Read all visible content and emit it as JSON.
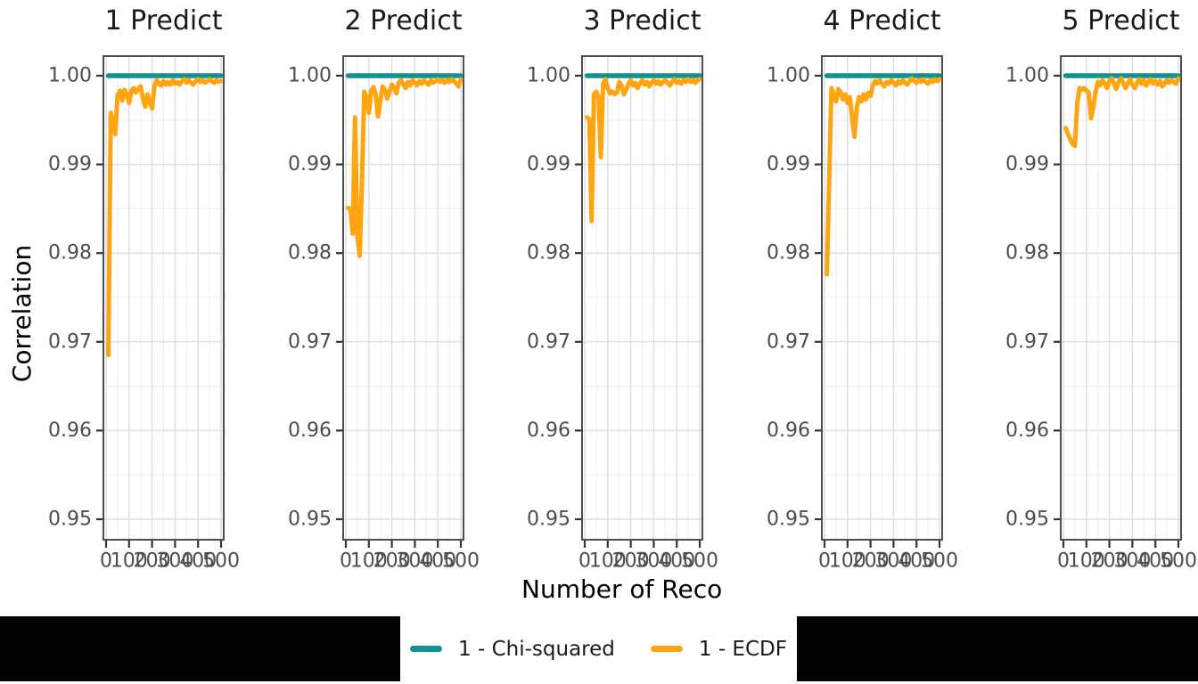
{
  "colors": {
    "chi_squared": "#12918F",
    "ecdf": "#FFA512",
    "grid_major": "#DEDEDE",
    "grid_minor": "#F0F0F0",
    "panel_border": "#3A3A3A",
    "tick_mark": "#333333",
    "tick_label": "#4D4D4D",
    "title_text": "#1A1A1A",
    "black_box": "#000000"
  },
  "legend": {
    "items": [
      {
        "label": "1 - Chi-squared",
        "color_key": "chi_squared",
        "swatch": "line"
      },
      {
        "label": "1 - ECDF",
        "color_key": "ecdf",
        "swatch": "line"
      }
    ],
    "position": "bottom-center"
  },
  "chart_data": {
    "type": "line",
    "title": "",
    "ylabel": "Correlation",
    "xlabel": "Number of Reco",
    "x_ticks": [
      0,
      100,
      200,
      300,
      400,
      500
    ],
    "x_tick_labels": [
      "0",
      "100",
      "200",
      "300",
      "400",
      "500"
    ],
    "y_ticks": [
      1.0,
      0.99,
      0.98,
      0.97,
      0.96,
      0.95
    ],
    "y_tick_labels": [
      "1.00",
      "0.99",
      "0.98",
      "0.97",
      "0.96",
      "0.95"
    ],
    "xlim": [
      0,
      500
    ],
    "ylim": [
      0.9475,
      1.0025
    ],
    "grid": "major+minor",
    "series_meta": [
      {
        "name": "1 - Chi-squared",
        "type": "constant",
        "value": 1.0
      },
      {
        "name": "1 - ECDF",
        "type": "line"
      }
    ],
    "x_start": 10,
    "x_step": 10,
    "facets": [
      {
        "title": "1 Predict",
        "ecdf_y": [
          0.9685,
          0.9958,
          0.9949,
          0.9934,
          0.9978,
          0.9983,
          0.9972,
          0.9984,
          0.9979,
          0.9969,
          0.9983,
          0.9986,
          0.9981,
          0.9985,
          0.9988,
          0.9975,
          0.9965,
          0.9979,
          0.9971,
          0.9963,
          0.9988,
          0.9995,
          0.9991,
          0.9989,
          0.9994,
          0.999,
          0.9993,
          0.999,
          0.9995,
          0.9991,
          0.9993,
          0.999,
          0.9994,
          0.9996,
          0.9992,
          0.9995,
          0.9992,
          0.999,
          0.9994,
          0.9996,
          0.9993,
          0.9995,
          0.9992,
          0.9994,
          0.9996,
          0.9994,
          0.9992,
          0.9995,
          0.9993,
          0.9994
        ]
      },
      {
        "title": "2 Predict",
        "ecdf_y": [
          0.9851,
          0.9849,
          0.9822,
          0.9953,
          0.982,
          0.9797,
          0.988,
          0.9982,
          0.9976,
          0.9958,
          0.9983,
          0.9987,
          0.9979,
          0.9954,
          0.9971,
          0.9988,
          0.9984,
          0.9974,
          0.9982,
          0.999,
          0.9986,
          0.998,
          0.9992,
          0.9995,
          0.999,
          0.9986,
          0.9993,
          0.9989,
          0.9995,
          0.9992,
          0.9989,
          0.9994,
          0.9991,
          0.9995,
          0.9992,
          0.999,
          0.9995,
          0.9992,
          0.9994,
          0.9996,
          0.9993,
          0.9995,
          0.9992,
          0.9995,
          0.9993,
          0.9996,
          0.9994,
          0.9991,
          0.9988,
          0.9996
        ]
      },
      {
        "title": "3 Predict",
        "ecdf_y": [
          0.9953,
          0.9951,
          0.9836,
          0.9979,
          0.9982,
          0.9976,
          0.9908,
          0.9991,
          0.9996,
          0.9986,
          0.998,
          0.9982,
          0.9979,
          0.9981,
          0.9993,
          0.9989,
          0.9979,
          0.9984,
          0.9991,
          0.9995,
          0.9989,
          0.9992,
          0.9986,
          0.9991,
          0.9995,
          0.999,
          0.9993,
          0.9988,
          0.9992,
          0.9995,
          0.9991,
          0.9994,
          0.999,
          0.9993,
          0.9995,
          0.9992,
          0.9989,
          0.9993,
          0.9996,
          0.9992,
          0.9994,
          0.9991,
          0.9995,
          0.9993,
          0.9996,
          0.9993,
          0.9995,
          0.9992,
          0.9995,
          0.9996
        ]
      },
      {
        "title": "4 Predict",
        "ecdf_y": [
          0.9776,
          0.988,
          0.9986,
          0.9979,
          0.9971,
          0.9985,
          0.9981,
          0.9973,
          0.9979,
          0.9969,
          0.9976,
          0.9953,
          0.9931,
          0.9963,
          0.9976,
          0.9971,
          0.9979,
          0.9973,
          0.9981,
          0.9977,
          0.9989,
          0.9994,
          0.9991,
          0.9995,
          0.9991,
          0.9988,
          0.9993,
          0.9991,
          0.9995,
          0.9992,
          0.9989,
          0.9994,
          0.9991,
          0.9995,
          0.9992,
          0.999,
          0.9994,
          0.9997,
          0.9994,
          0.9992,
          0.9995,
          0.9993,
          0.9996,
          0.9993,
          0.9991,
          0.9995,
          0.9993,
          0.9996,
          0.9994,
          0.9996
        ]
      },
      {
        "title": "5 Predict",
        "ecdf_y": [
          0.9941,
          0.9934,
          0.9928,
          0.9923,
          0.9921,
          0.9968,
          0.9986,
          0.9984,
          0.9986,
          0.9983,
          0.9981,
          0.9952,
          0.9964,
          0.9982,
          0.9993,
          0.9989,
          0.9995,
          0.9991,
          0.9986,
          0.9994,
          0.9997,
          0.9991,
          0.9985,
          0.9993,
          0.9997,
          0.9992,
          0.9986,
          0.9991,
          0.9996,
          0.999,
          0.9986,
          0.9992,
          0.9996,
          0.9991,
          0.9995,
          0.9989,
          0.9993,
          0.9996,
          0.9991,
          0.9994,
          0.999,
          0.9994,
          0.9988,
          0.9991,
          0.9995,
          0.9992,
          0.9995,
          0.9993,
          0.9991,
          0.9997
        ]
      }
    ]
  }
}
